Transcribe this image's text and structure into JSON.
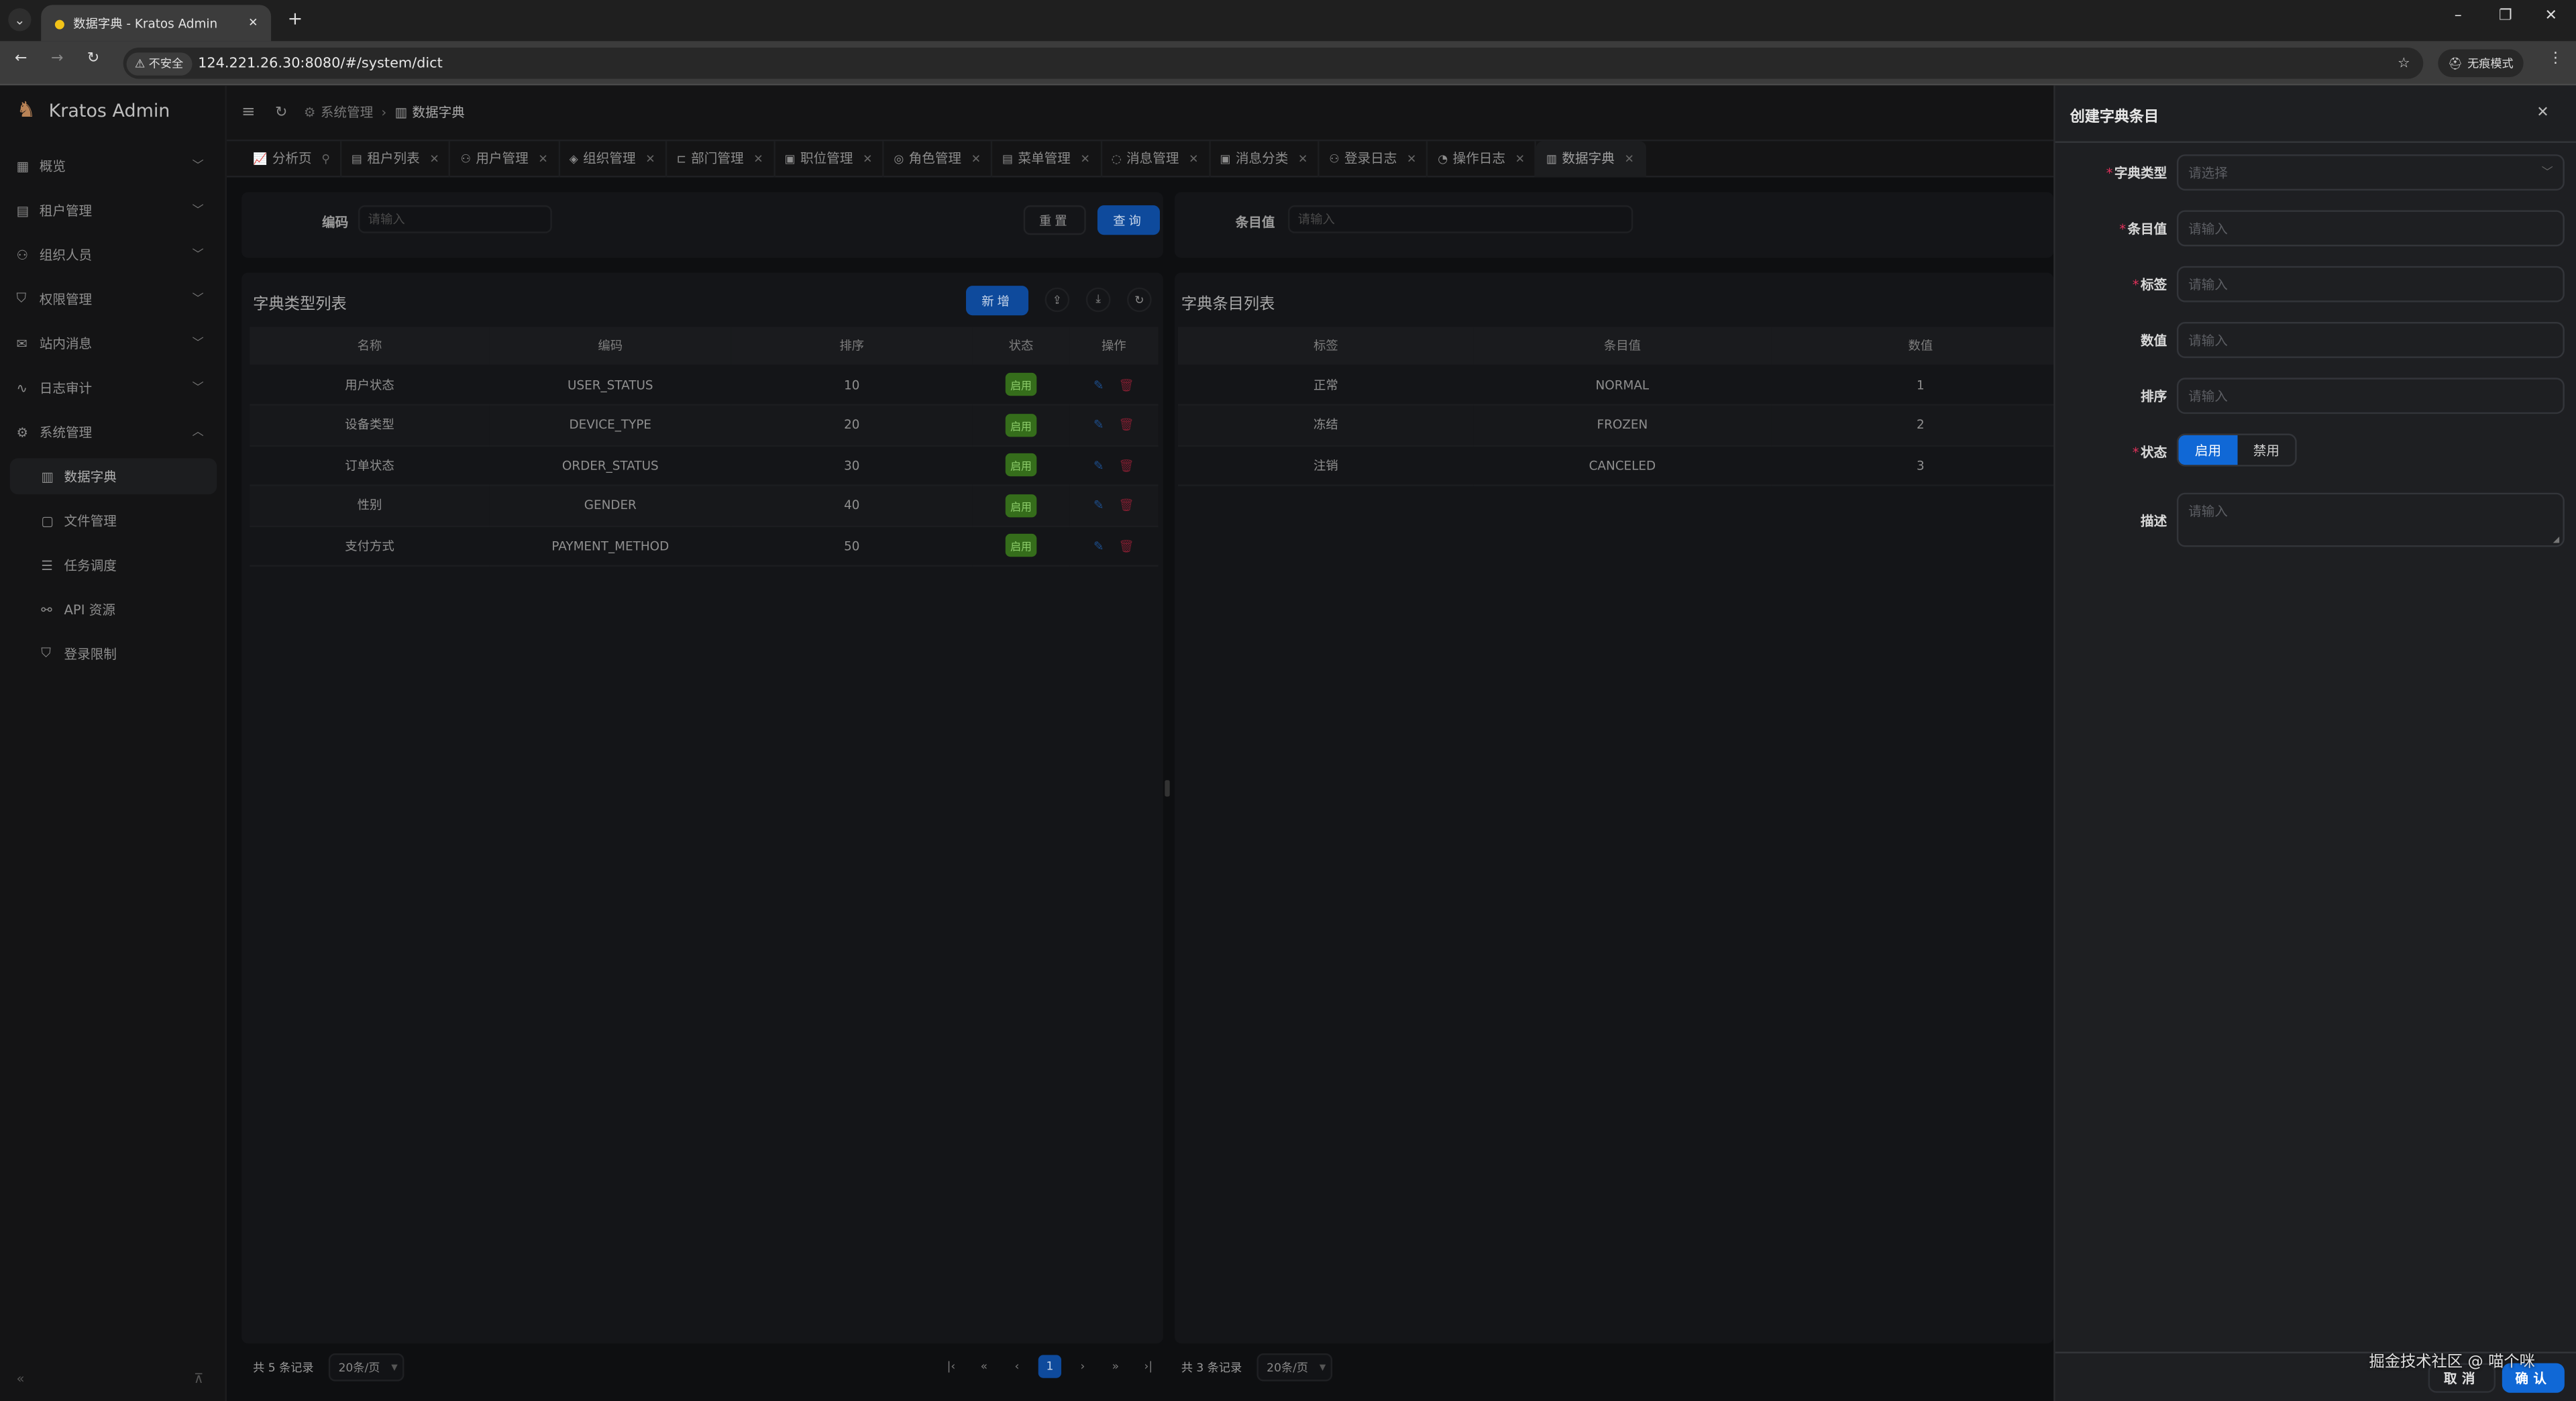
{
  "browser": {
    "tab_title": "数据字典 - Kratos Admin",
    "new_tab": "+",
    "tab_list": "⌄",
    "close": "✕",
    "insecure": "不安全",
    "url": "124.221.26.30:8080/#/system/dict",
    "incognito": "无痕模式",
    "minimize": "–",
    "restore": "❐",
    "close_window": "✕",
    "back": "←",
    "forward": "→",
    "reload": "↻",
    "bookmark": "☆",
    "menu": "⋮"
  },
  "app": {
    "name": "Kratos Admin"
  },
  "sidebar": {
    "items": [
      {
        "label": "概览",
        "icon": "▦",
        "open": false
      },
      {
        "label": "租户管理",
        "icon": "▤",
        "open": false
      },
      {
        "label": "组织人员",
        "icon": "⚇",
        "open": false
      },
      {
        "label": "权限管理",
        "icon": "⛉",
        "open": false
      },
      {
        "label": "站内消息",
        "icon": "✉",
        "open": false
      },
      {
        "label": "日志审计",
        "icon": "∿",
        "open": false
      },
      {
        "label": "系统管理",
        "icon": "⚙",
        "open": true
      }
    ],
    "subitems": [
      {
        "label": "数据字典",
        "icon": "▥",
        "active": true
      },
      {
        "label": "文件管理",
        "icon": "▢",
        "active": false
      },
      {
        "label": "任务调度",
        "icon": "☰",
        "active": false
      },
      {
        "label": "API 资源",
        "icon": "⚯",
        "active": false
      },
      {
        "label": "登录限制",
        "icon": "⛉",
        "active": false
      }
    ],
    "collapse": "«",
    "pin": "⊼"
  },
  "header": {
    "menu": "≡",
    "refresh": "↻",
    "breadcrumb": [
      {
        "icon": "⚙",
        "label": "系统管理"
      },
      {
        "icon": "▥",
        "label": "数据字典"
      }
    ],
    "sep": "›"
  },
  "page_tabs": [
    {
      "label": "分析页",
      "icon": "📈",
      "pinned": true
    },
    {
      "label": "租户列表",
      "icon": "▤"
    },
    {
      "label": "用户管理",
      "icon": "⚇"
    },
    {
      "label": "组织管理",
      "icon": "◈"
    },
    {
      "label": "部门管理",
      "icon": "⊏"
    },
    {
      "label": "职位管理",
      "icon": "▣"
    },
    {
      "label": "角色管理",
      "icon": "◎"
    },
    {
      "label": "菜单管理",
      "icon": "▤"
    },
    {
      "label": "消息管理",
      "icon": "◌"
    },
    {
      "label": "消息分类",
      "icon": "▣"
    },
    {
      "label": "登录日志",
      "icon": "⚇"
    },
    {
      "label": "操作日志",
      "icon": "◔"
    },
    {
      "label": "数据字典",
      "icon": "▥",
      "active": true
    }
  ],
  "left_search": {
    "label": "编码",
    "placeholder": "请输入",
    "reset": "重置",
    "query": "查询"
  },
  "right_search": {
    "label": "条目值",
    "placeholder": "请输入"
  },
  "type_list": {
    "title": "字典类型列表",
    "add": "新增",
    "export": "⇪",
    "import": "⤓",
    "refresh": "↻",
    "columns": [
      "名称",
      "编码",
      "排序",
      "状态",
      "操作"
    ],
    "rows": [
      {
        "name": "用户状态",
        "code": "USER_STATUS",
        "sort": "10",
        "status": "启用"
      },
      {
        "name": "设备类型",
        "code": "DEVICE_TYPE",
        "sort": "20",
        "status": "启用"
      },
      {
        "name": "订单状态",
        "code": "ORDER_STATUS",
        "sort": "30",
        "status": "启用"
      },
      {
        "name": "性别",
        "code": "GENDER",
        "sort": "40",
        "status": "启用"
      },
      {
        "name": "支付方式",
        "code": "PAYMENT_METHOD",
        "sort": "50",
        "status": "启用"
      }
    ],
    "total": "共 5 条记录",
    "page_size": "20条/页",
    "page": "1",
    "pager": {
      "first": "|‹",
      "prev_group": "«",
      "prev": "‹",
      "next": "›",
      "next_group": "»",
      "last": "›|"
    }
  },
  "entry_list": {
    "title": "字典条目列表",
    "columns": [
      "标签",
      "条目值",
      "数值"
    ],
    "rows": [
      {
        "label": "正常",
        "value": "NORMAL",
        "num": "1"
      },
      {
        "label": "冻结",
        "value": "FROZEN",
        "num": "2"
      },
      {
        "label": "注销",
        "value": "CANCELED",
        "num": "3"
      }
    ],
    "total": "共 3 条记录",
    "page_size": "20条/页"
  },
  "drawer": {
    "title": "创建字典条目",
    "close": "✕",
    "fields": [
      {
        "label": "字典类型",
        "required": true,
        "placeholder": "请选择",
        "type": "select"
      },
      {
        "label": "条目值",
        "required": true,
        "placeholder": "请输入"
      },
      {
        "label": "标签",
        "required": true,
        "placeholder": "请输入"
      },
      {
        "label": "数值",
        "required": false,
        "placeholder": "请输入"
      },
      {
        "label": "排序",
        "required": false,
        "placeholder": "请输入"
      }
    ],
    "status": {
      "label": "状态",
      "required": true,
      "options": [
        "启用",
        "禁用"
      ],
      "selected": "启用"
    },
    "description": {
      "label": "描述",
      "placeholder": "请输入"
    },
    "cancel": "取消",
    "confirm": "确认"
  },
  "watermark": "掘金技术社区 @ 喵个咪",
  "colors": {
    "primary": "#1068d6",
    "success": "#356d1b",
    "danger": "#e0315a"
  }
}
